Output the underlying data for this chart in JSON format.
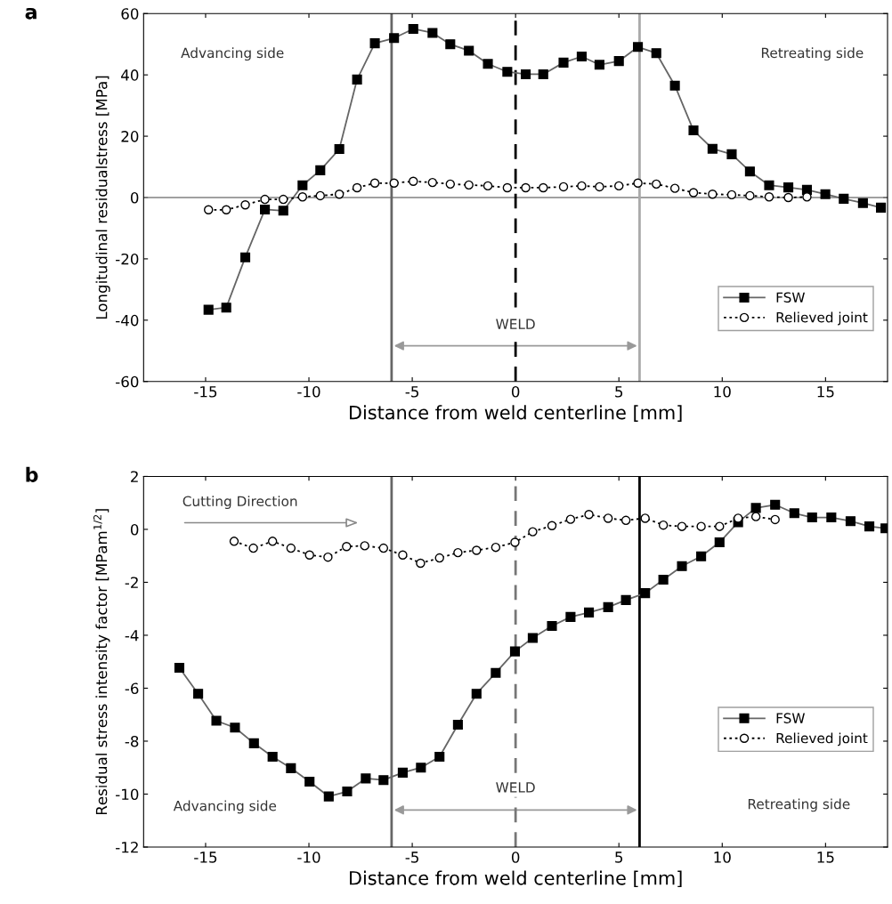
{
  "chart_data": [
    {
      "type": "line",
      "title": "a",
      "xlabel": "Distance from weld centerline [mm]",
      "ylabel": "Longitudinal residualstress [MPa]",
      "xlim": [
        -18,
        18
      ],
      "xticks": [
        -15,
        -10,
        -5,
        0,
        5,
        10,
        15
      ],
      "ylim": [
        -60,
        60
      ],
      "yticks": [
        -60,
        -40,
        -20,
        0,
        20,
        40,
        60
      ],
      "grid": false,
      "legend": "lower right",
      "series": [
        {
          "name": "FSW",
          "color": "#000000",
          "marker": "square",
          "line_style": "solid",
          "x": [
            -14.86,
            -14.0,
            -13.08,
            -12.13,
            -11.24,
            -10.31,
            -9.45,
            -8.53,
            -7.67,
            -6.81,
            -5.88,
            -4.95,
            -4.02,
            -3.16,
            -2.26,
            -1.34,
            -0.4,
            0.49,
            1.34,
            2.32,
            3.2,
            4.06,
            5.0,
            5.92,
            6.81,
            7.71,
            8.61,
            9.53,
            10.46,
            11.34,
            12.27,
            13.2,
            14.1,
            14.99,
            15.88,
            16.81,
            17.68
          ],
          "values": [
            -36.6,
            -35.9,
            -19.5,
            -3.9,
            -4.3,
            4.0,
            8.9,
            15.8,
            38.5,
            50.3,
            52.0,
            55.0,
            53.7,
            50.0,
            47.9,
            43.6,
            41.0,
            40.2,
            40.2,
            44.0,
            46.0,
            43.3,
            44.5,
            49.1,
            47.1,
            36.5,
            21.9,
            15.9,
            14.1,
            8.5,
            4.0,
            3.3,
            2.5,
            1.1,
            -0.4,
            -1.8,
            -3.3
          ]
        },
        {
          "name": "Relieved joint",
          "color": "#000000",
          "marker": "circle",
          "line_style": "dotted",
          "x": [
            -14.86,
            -14.0,
            -13.08,
            -12.13,
            -11.24,
            -10.31,
            -9.45,
            -8.53,
            -7.67,
            -6.81,
            -5.88,
            -4.95,
            -4.02,
            -3.16,
            -2.26,
            -1.34,
            -0.4,
            0.49,
            1.34,
            2.32,
            3.2,
            4.06,
            5.0,
            5.92,
            6.81,
            7.71,
            8.61,
            9.53,
            10.46,
            11.34,
            12.27,
            13.2,
            14.1
          ],
          "values": [
            -4.0,
            -4.0,
            -2.4,
            -0.6,
            -0.6,
            0.2,
            0.6,
            1.1,
            3.2,
            4.7,
            4.7,
            5.3,
            4.9,
            4.4,
            4.1,
            3.8,
            3.2,
            3.2,
            3.2,
            3.5,
            3.8,
            3.5,
            3.8,
            4.7,
            4.4,
            3.0,
            1.6,
            1.1,
            0.9,
            0.6,
            0.2,
            0.0,
            0.2
          ]
        }
      ],
      "ref_lines": [
        {
          "axis": "y",
          "value": 0,
          "color": "#808080",
          "line_style": "solid"
        },
        {
          "axis": "x",
          "value": -6,
          "color": "#666666",
          "line_style": "solid"
        },
        {
          "axis": "x",
          "value": 0,
          "color": "#000000",
          "line_style": "dashed"
        },
        {
          "axis": "x",
          "value": 6,
          "color": "#aaaaaa",
          "line_style": "solid"
        }
      ],
      "annotations": [
        "Advancing side",
        "Retreating side",
        "WELD"
      ]
    },
    {
      "type": "line",
      "title": "b",
      "xlabel": "Distance from weld centerline [mm]",
      "ylabel": "Residual stress intensity factor [MPam$^{1/2}$]",
      "xlim": [
        -18,
        18
      ],
      "xticks": [
        -15,
        -10,
        -5,
        0,
        5,
        10,
        15
      ],
      "ylim": [
        -12,
        2
      ],
      "yticks": [
        -12,
        -10,
        -8,
        -6,
        -4,
        -2,
        0,
        2
      ],
      "grid": false,
      "legend": "lower right",
      "series": [
        {
          "name": "FSW",
          "color": "#000000",
          "marker": "square",
          "line_style": "solid",
          "x": [
            -16.27,
            -15.36,
            -14.48,
            -13.58,
            -12.66,
            -11.76,
            -10.87,
            -9.97,
            -9.04,
            -8.15,
            -7.25,
            -6.39,
            -5.46,
            -4.58,
            -3.68,
            -2.79,
            -1.89,
            -0.96,
            -0.03,
            0.83,
            1.76,
            2.66,
            3.55,
            4.48,
            5.34,
            6.27,
            7.15,
            8.05,
            8.98,
            9.87,
            10.77,
            11.63,
            12.56,
            13.49,
            14.35,
            15.28,
            16.21,
            17.12,
            17.9
          ],
          "values": [
            -5.23,
            -6.21,
            -7.23,
            -7.49,
            -8.08,
            -8.59,
            -9.02,
            -9.53,
            -10.09,
            -9.9,
            -9.41,
            -9.47,
            -9.19,
            -9.0,
            -8.59,
            -7.38,
            -6.21,
            -5.42,
            -4.61,
            -4.1,
            -3.65,
            -3.31,
            -3.14,
            -2.94,
            -2.67,
            -2.41,
            -1.9,
            -1.39,
            -1.02,
            -0.49,
            0.27,
            0.81,
            0.93,
            0.61,
            0.45,
            0.45,
            0.31,
            0.11,
            0.04
          ]
        },
        {
          "name": "Relieved joint",
          "color": "#000000",
          "marker": "circle",
          "line_style": "dotted",
          "x": [
            -13.62,
            -12.69,
            -11.76,
            -10.87,
            -9.97,
            -9.08,
            -8.18,
            -7.3,
            -6.39,
            -5.46,
            -4.6,
            -3.68,
            -2.79,
            -1.89,
            -0.96,
            -0.03,
            0.83,
            1.76,
            2.66,
            3.55,
            4.48,
            5.34,
            6.27,
            7.15,
            8.05,
            8.98,
            9.87,
            10.77,
            11.63,
            12.56
          ],
          "values": [
            -0.45,
            -0.71,
            -0.45,
            -0.71,
            -0.97,
            -1.05,
            -0.65,
            -0.62,
            -0.71,
            -0.97,
            -1.28,
            -1.08,
            -0.88,
            -0.79,
            -0.68,
            -0.49,
            -0.09,
            0.14,
            0.38,
            0.56,
            0.42,
            0.34,
            0.42,
            0.16,
            0.11,
            0.11,
            0.11,
            0.42,
            0.48,
            0.37
          ]
        }
      ],
      "ref_lines": [
        {
          "axis": "x",
          "value": -6,
          "color": "#666666",
          "line_style": "solid"
        },
        {
          "axis": "x",
          "value": 0,
          "color": "#777777",
          "line_style": "dashed"
        },
        {
          "axis": "x",
          "value": 6,
          "color": "#000000",
          "line_style": "solid"
        }
      ],
      "annotations": [
        "Cutting Direction",
        "Advancing side",
        "Retreating side",
        "WELD"
      ]
    }
  ]
}
